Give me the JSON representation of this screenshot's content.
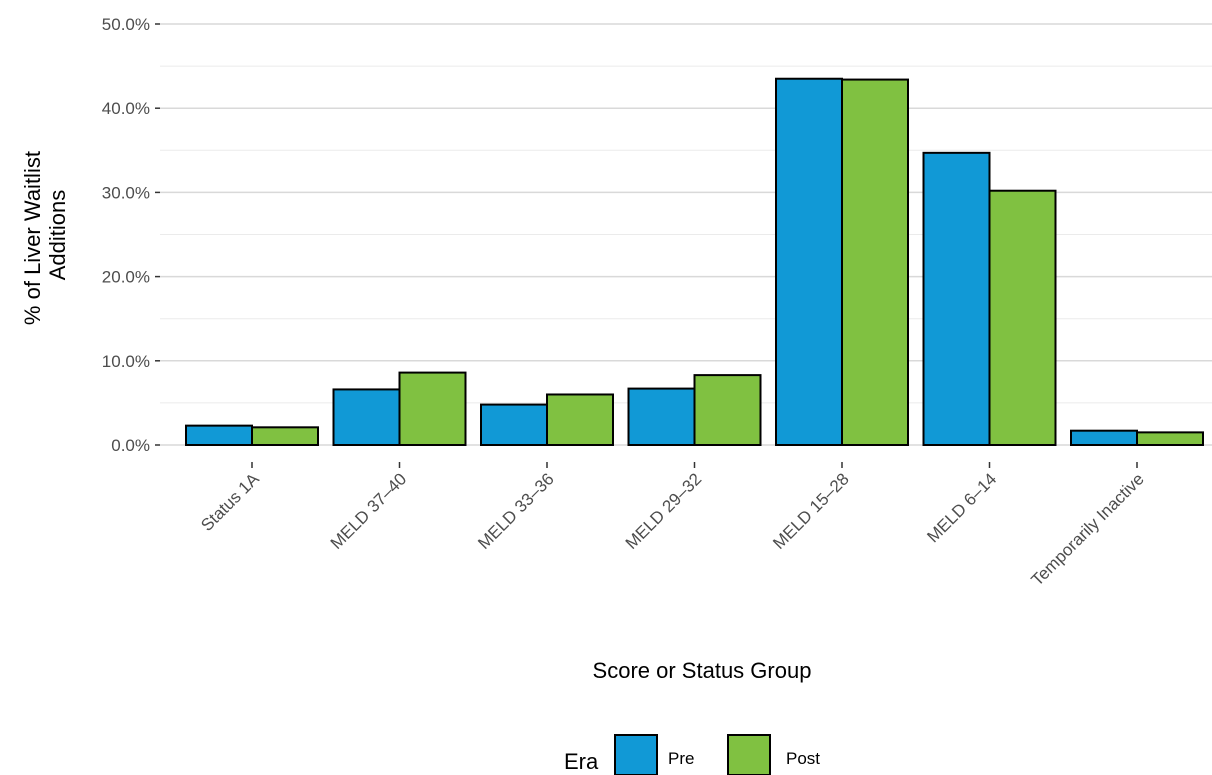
{
  "chart_data": {
    "type": "bar",
    "xlabel": "Score or Status Group",
    "ylabel_lines": [
      "% of Liver Waitlist",
      "Additions"
    ],
    "categories": [
      "Status 1A",
      "MELD 37–40",
      "MELD 33–36",
      "MELD 29–32",
      "MELD 15–28",
      "MELD 6–14",
      "Temporarily Inactive"
    ],
    "series": [
      {
        "name": "Pre",
        "color": "#1199d6",
        "values": [
          2.3,
          6.6,
          4.8,
          6.7,
          43.5,
          34.7,
          1.7
        ]
      },
      {
        "name": "Post",
        "color": "#80c141",
        "values": [
          2.1,
          8.6,
          6.0,
          8.3,
          43.4,
          30.2,
          1.5
        ]
      }
    ],
    "ylim": [
      0,
      50
    ],
    "y_ticks": [
      "0.0%",
      "10.0%",
      "20.0%",
      "30.0%",
      "40.0%",
      "50.0%"
    ],
    "y_tick_values": [
      0,
      10,
      20,
      30,
      40,
      50
    ],
    "grid": true,
    "legend": {
      "title": "Era",
      "position": "bottom"
    }
  }
}
